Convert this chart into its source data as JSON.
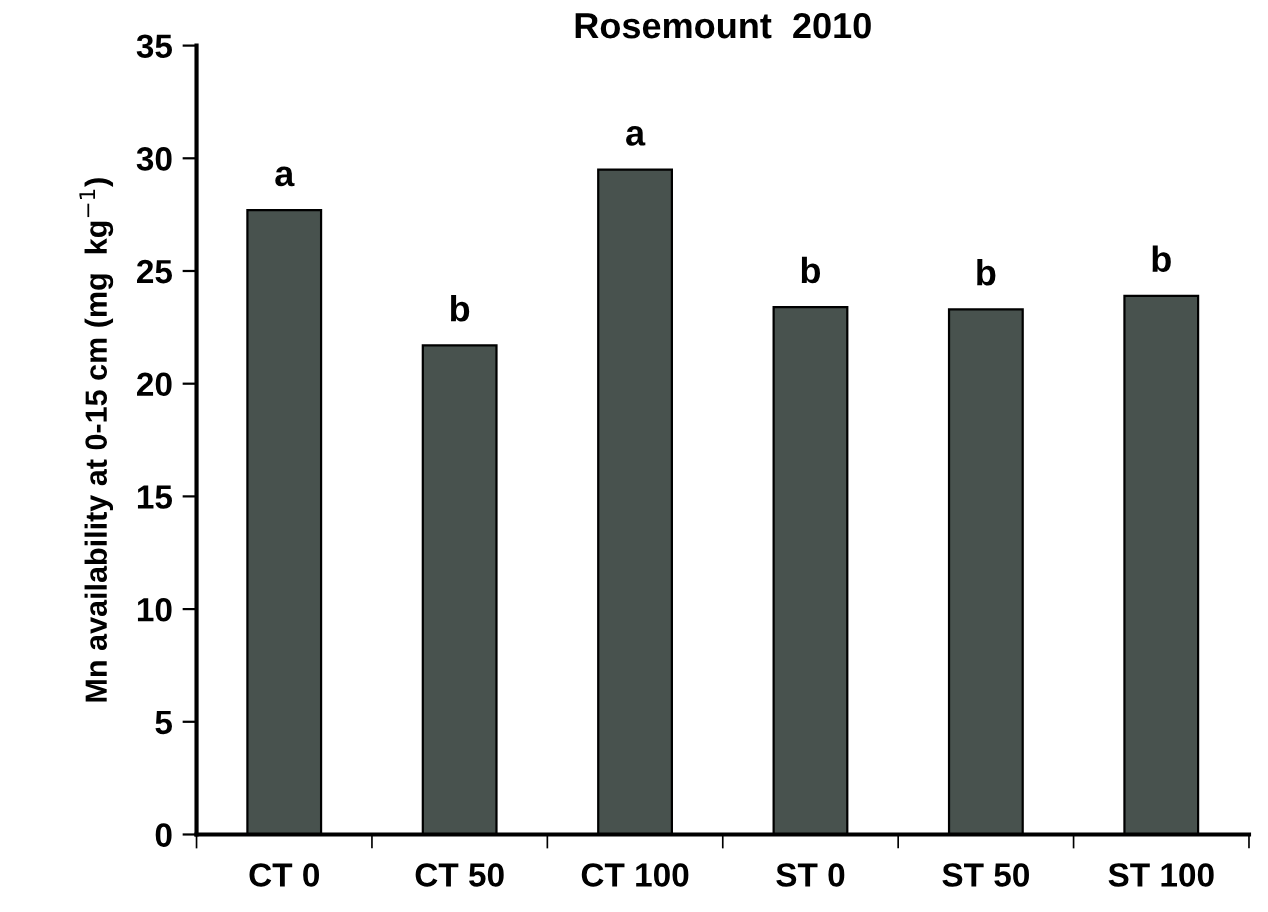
{
  "chart_data": {
    "type": "bar",
    "title": "Rosemount  2010",
    "ylabel": "Mn availability at 0-15 cm (mg  kg$^{−1}$)",
    "categories": [
      "CT 0",
      "CT 50",
      "CT 100",
      "ST 0",
      "ST 50",
      "ST 100"
    ],
    "values": [
      27.7,
      21.7,
      29.5,
      23.4,
      23.3,
      23.9
    ],
    "color": "#48524e",
    "ylim": [
      0,
      35
    ],
    "yticks": [
      0,
      5,
      10,
      15,
      20,
      25,
      30,
      35
    ],
    "grid": false,
    "legend": false,
    "annotations": [
      {
        "text": "a",
        "x": "CT 0",
        "y": 27.7
      },
      {
        "text": "b",
        "x": "CT 50",
        "y": 21.7
      },
      {
        "text": "a",
        "x": "CT 100",
        "y": 29.5
      },
      {
        "text": "b",
        "x": "ST 0",
        "y": 23.4
      },
      {
        "text": "b",
        "x": "ST 50",
        "y": 23.3
      },
      {
        "text": "b",
        "x": "ST 100",
        "y": 23.9
      }
    ]
  }
}
